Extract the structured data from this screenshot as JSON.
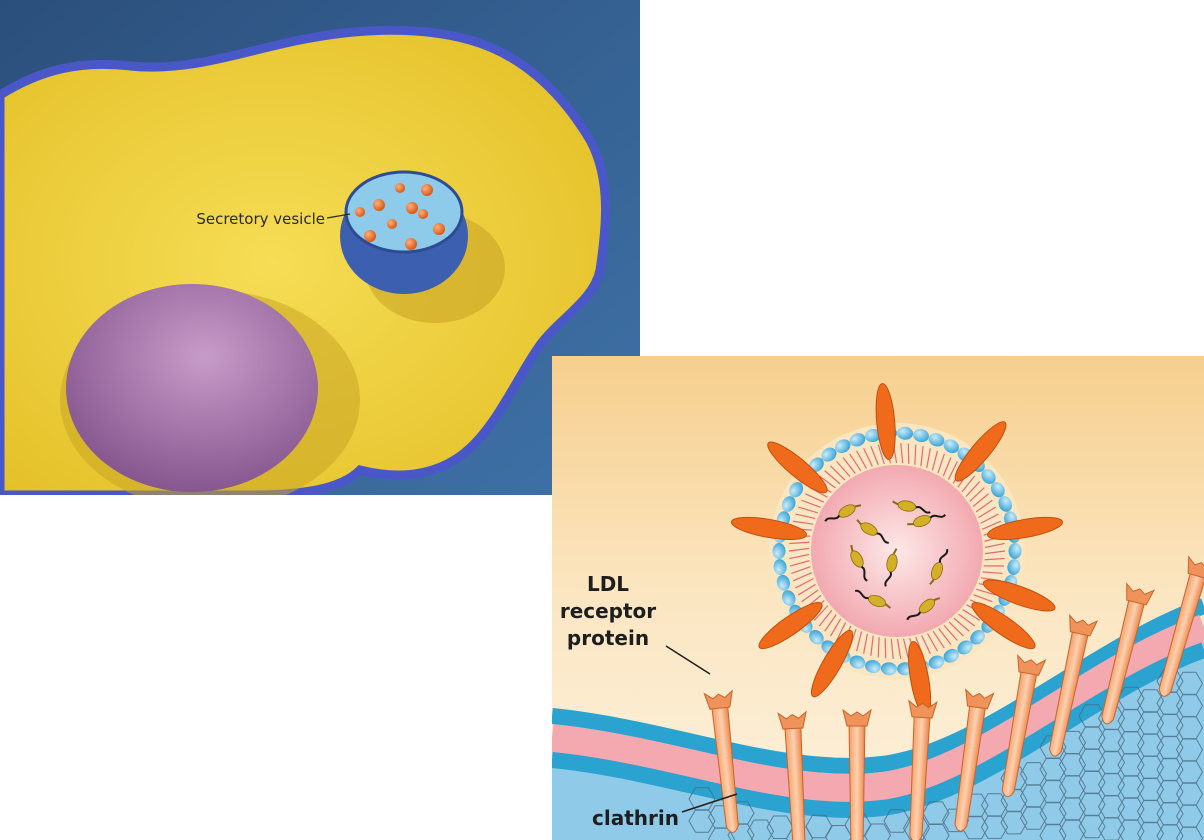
{
  "cell_panel": {
    "vesicle_label": "Secretory vesicle",
    "colors": {
      "background": "#2f5b8a",
      "cytoplasm": "#efce2e",
      "membrane": "#4a57c9",
      "nucleus": "#a06aa8",
      "vesicle_lumen": "#8ecbea",
      "vesicle_rim": "#3c5fb0",
      "secretory_granules": "#f06a1c"
    }
  },
  "ldl_panel": {
    "receptor_label": [
      "LDL",
      "receptor",
      "protein"
    ],
    "clathrin_label": "clathrin",
    "colors": {
      "background_top": "#f8d9a0",
      "background_bottom": "#fbefd6",
      "membrane_blue": "#2aa3d0",
      "membrane_pink": "#f4a8b0",
      "cytosol": "#8fcbe8",
      "receptor": "#f0935a",
      "apoprotein": "#f06a1c",
      "phospholipid_heads": "#6cc3ea",
      "lipid_core": "#f7c4c7",
      "cholesteryl_ester": "#d4b028"
    }
  }
}
